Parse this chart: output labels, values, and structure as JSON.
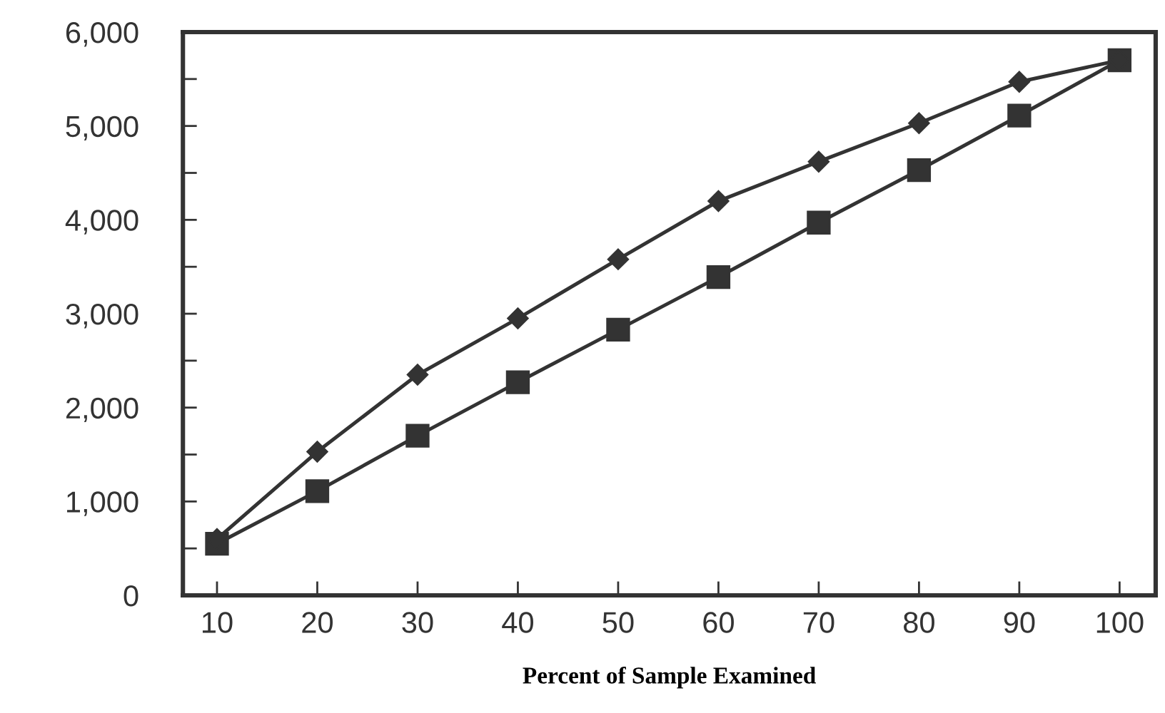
{
  "chart_data": {
    "type": "line",
    "xlabel": "Percent of Sample Examined",
    "categories": [
      "10",
      "20",
      "30",
      "40",
      "50",
      "60",
      "70",
      "80",
      "90",
      "100"
    ],
    "series": [
      {
        "color": "#333333",
        "marker": "square",
        "values": [
          550,
          1110,
          1700,
          2270,
          2830,
          3390,
          3970,
          4530,
          5110,
          5700
        ]
      },
      {
        "color": "#333333",
        "marker": "diamond",
        "values": [
          600,
          1530,
          2350,
          2950,
          3580,
          4200,
          4620,
          5030,
          5470,
          5700
        ]
      }
    ],
    "ylim": [
      0,
      6000
    ],
    "yticks": [
      0,
      {
        "value": 500,
        "label": null
      },
      {
        "value": 1000,
        "label": "1,000"
      },
      {
        "value": 1500,
        "label": null
      },
      {
        "value": 2000,
        "label": "2,000"
      },
      {
        "value": 2500,
        "label": null
      },
      {
        "value": 3000,
        "label": "3,000"
      },
      {
        "value": 3500,
        "label": null
      },
      {
        "value": 4000,
        "label": "4,000"
      },
      {
        "value": 4500,
        "label": null
      },
      {
        "value": 5000,
        "label": "5,000"
      },
      {
        "value": 5500,
        "label": null
      },
      {
        "value": 6000,
        "label": "6,000"
      }
    ],
    "grid": false,
    "legend": false,
    "line_style": "solid"
  }
}
